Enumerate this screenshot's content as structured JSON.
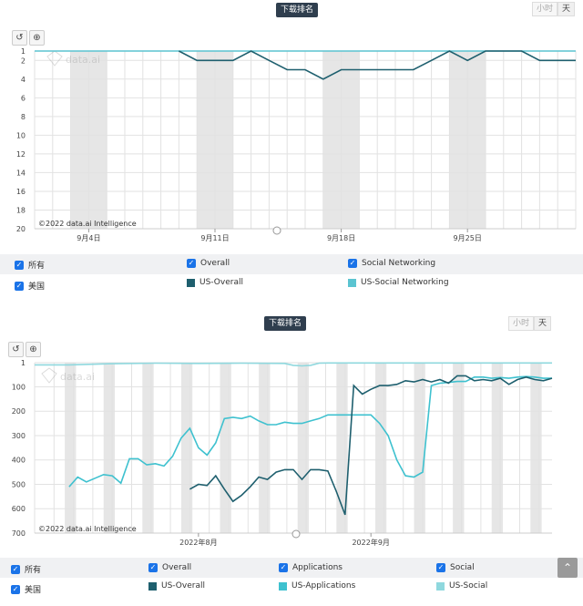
{
  "chart1": {
    "title_button": "下载排名",
    "unit_hour": "小时",
    "unit_day": "天",
    "watermark": "data.ai",
    "copyright": "©2022 data.ai Intelligence",
    "legend_row1": [
      {
        "label": "所有",
        "kind": "checkbox"
      },
      {
        "label": "Overall",
        "kind": "checkbox"
      },
      {
        "label": "Social Networking",
        "kind": "checkbox"
      }
    ],
    "legend_row2": [
      {
        "label": "美国",
        "kind": "checkbox"
      },
      {
        "label": "US-Overall",
        "kind": "swatch",
        "color": "#1e5f6e"
      },
      {
        "label": "US-Social Networking",
        "kind": "swatch",
        "color": "#5bc4d1"
      }
    ]
  },
  "chart2": {
    "title_button": "下载排名",
    "unit_hour": "小时",
    "unit_day": "天",
    "watermark": "data.ai",
    "copyright": "©2022 data.ai Intelligence",
    "legend_row1": [
      {
        "label": "所有",
        "kind": "checkbox"
      },
      {
        "label": "Overall",
        "kind": "checkbox"
      },
      {
        "label": "Applications",
        "kind": "checkbox"
      },
      {
        "label": "Social",
        "kind": "checkbox"
      }
    ],
    "legend_row2": [
      {
        "label": "美国",
        "kind": "checkbox"
      },
      {
        "label": "US-Overall",
        "kind": "swatch",
        "color": "#1e5f6e"
      },
      {
        "label": "US-Applications",
        "kind": "swatch",
        "color": "#3ec1cf"
      },
      {
        "label": "US-Social",
        "kind": "swatch",
        "color": "#8fd8de"
      }
    ]
  },
  "chart_data": [
    {
      "type": "line",
      "y_reversed": true,
      "ylim": [
        1,
        20
      ],
      "yticks": [
        1,
        2,
        4,
        6,
        8,
        10,
        12,
        14,
        16,
        18,
        20
      ],
      "x_start": 1,
      "x_end": 31,
      "x_ticks": [
        {
          "x": 4,
          "label": "9月4日"
        },
        {
          "x": 11,
          "label": "9月11日"
        },
        {
          "x": 18,
          "label": "9月18日"
        },
        {
          "x": 25,
          "label": "9月25日"
        }
      ],
      "shaded_bands": [
        [
          3,
          5
        ],
        [
          10,
          12
        ],
        [
          17,
          19
        ],
        [
          24,
          26
        ]
      ],
      "grid": true,
      "series": [
        {
          "name": "US-Social Networking",
          "color": "#5bc4d1",
          "x": [
            1,
            2,
            3,
            4,
            5,
            6,
            7,
            8,
            9,
            10,
            11,
            12,
            13,
            14,
            15,
            16,
            17,
            18,
            19,
            20,
            21,
            22,
            23,
            24,
            25,
            26,
            27,
            28,
            29,
            30,
            31
          ],
          "y": [
            1,
            1,
            1,
            1,
            1,
            1,
            1,
            1,
            1,
            1,
            1,
            1,
            1,
            1,
            1,
            1,
            1,
            1,
            1,
            1,
            1,
            1,
            1,
            1,
            1,
            1,
            1,
            1,
            1,
            1,
            1
          ]
        },
        {
          "name": "US-Overall",
          "color": "#1e5f6e",
          "x": [
            9,
            10,
            11,
            12,
            13,
            14,
            15,
            16,
            17,
            18,
            19,
            20,
            21,
            22,
            23,
            24,
            25,
            26,
            27,
            28,
            29,
            30,
            31
          ],
          "y": [
            1,
            2,
            2,
            2,
            1,
            2,
            3,
            3,
            4,
            3,
            3,
            3,
            3,
            3,
            2,
            1,
            2,
            1,
            1,
            1,
            2,
            2,
            2
          ]
        }
      ]
    },
    {
      "type": "line",
      "y_reversed": true,
      "ylim": [
        1,
        700
      ],
      "yticks": [
        1,
        100,
        200,
        300,
        400,
        500,
        600,
        700
      ],
      "x_start": 1,
      "x_end": 61,
      "x_ticks": [
        {
          "x": 20,
          "label": "2022年8月"
        },
        {
          "x": 40,
          "label": "2022年9月"
        }
      ],
      "shaded_bands": [
        [
          4.5,
          5.8
        ],
        [
          9,
          10.3
        ],
        [
          13.5,
          14.8
        ],
        [
          18,
          19.3
        ],
        [
          22.5,
          23.8
        ],
        [
          27,
          28.3
        ],
        [
          31.5,
          32.8
        ],
        [
          36,
          37.3
        ],
        [
          40.5,
          41.8
        ],
        [
          45,
          46.3
        ],
        [
          49.5,
          50.8
        ],
        [
          54,
          55.3
        ],
        [
          58.5,
          59.8
        ]
      ],
      "grid": true,
      "series": [
        {
          "name": "US-Social",
          "color": "#8fd8de",
          "x": [
            1,
            5,
            10,
            15,
            20,
            25,
            30,
            31,
            32,
            33,
            34,
            35,
            40,
            45,
            50,
            55,
            61
          ],
          "y": [
            10,
            10,
            5,
            3,
            4,
            3,
            4,
            12,
            14,
            12,
            3,
            2,
            2,
            2,
            2,
            2,
            2
          ]
        },
        {
          "name": "US-Applications",
          "color": "#3ec1cf",
          "x": [
            5,
            6,
            7,
            8,
            9,
            10,
            11,
            12,
            13,
            14,
            15,
            16,
            17,
            18,
            19,
            20,
            21,
            22,
            23,
            24,
            25,
            26,
            27,
            28,
            29,
            30,
            31,
            32,
            33,
            34,
            35,
            36,
            37,
            38,
            39,
            40,
            41,
            42,
            43,
            44,
            45,
            46,
            47,
            48,
            49,
            50,
            51,
            52,
            53,
            54,
            55,
            56,
            57,
            58,
            59,
            60,
            61
          ],
          "y": [
            510,
            470,
            490,
            475,
            460,
            465,
            495,
            395,
            395,
            420,
            415,
            425,
            385,
            310,
            270,
            350,
            380,
            330,
            230,
            225,
            230,
            220,
            240,
            255,
            255,
            245,
            250,
            250,
            240,
            230,
            215,
            215,
            215,
            215,
            215,
            215,
            250,
            300,
            400,
            465,
            470,
            450,
            95,
            85,
            82,
            78,
            78,
            60,
            60,
            65,
            62,
            65,
            60,
            58,
            60,
            65,
            65
          ]
        },
        {
          "name": "US-Overall",
          "color": "#1e5f6e",
          "x": [
            19,
            20,
            21,
            22,
            23,
            24,
            25,
            26,
            27,
            28,
            29,
            30,
            31,
            32,
            33,
            34,
            35,
            36,
            37,
            38,
            39,
            40,
            41,
            42,
            43,
            44,
            45,
            46,
            47,
            48,
            49,
            50,
            51,
            52,
            53,
            54,
            55,
            56,
            57,
            58,
            59,
            60,
            61
          ],
          "y": [
            520,
            500,
            505,
            465,
            520,
            570,
            545,
            510,
            470,
            480,
            450,
            440,
            440,
            480,
            440,
            440,
            445,
            530,
            625,
            95,
            130,
            110,
            95,
            95,
            90,
            75,
            80,
            70,
            80,
            70,
            85,
            55,
            55,
            75,
            70,
            75,
            65,
            90,
            70,
            60,
            70,
            75,
            65
          ]
        }
      ]
    }
  ]
}
